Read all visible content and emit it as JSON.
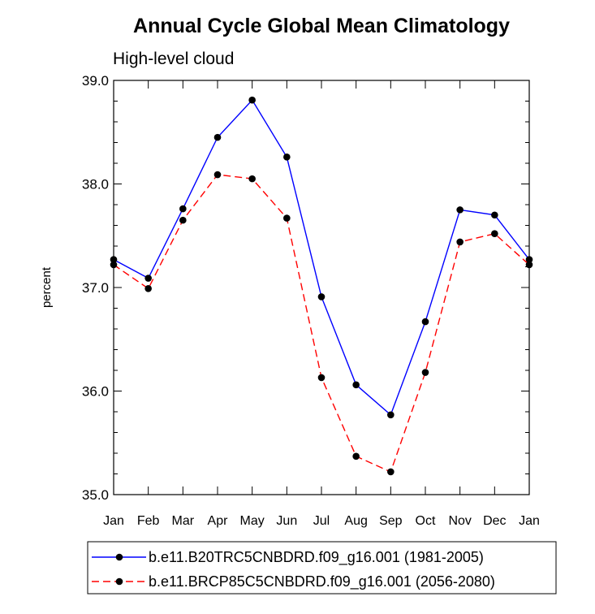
{
  "chart_data": {
    "type": "line",
    "title": "Annual Cycle Global Mean Climatology",
    "subtitle": "High-level cloud",
    "xlabel": "",
    "ylabel": "percent",
    "categories": [
      "Jan",
      "Feb",
      "Mar",
      "Apr",
      "May",
      "Jun",
      "Jul",
      "Aug",
      "Sep",
      "Oct",
      "Nov",
      "Dec",
      "Jan"
    ],
    "ylim": [
      35.0,
      39.0
    ],
    "yticks": [
      "35.0",
      "36.0",
      "37.0",
      "38.0",
      "39.0"
    ],
    "grid": false,
    "legend_position": "bottom",
    "series": [
      {
        "name": "b.e11.B20TRC5CNBDRD.f09_g16.001 (1981-2005)",
        "color": "#0000ff",
        "line_style": "solid",
        "values": [
          37.27,
          37.09,
          37.76,
          38.45,
          38.81,
          38.26,
          36.91,
          36.06,
          35.77,
          36.67,
          37.75,
          37.7,
          37.27
        ]
      },
      {
        "name": "b.e11.BRCP85C5CNBDRD.f09_g16.001 (2056-2080)",
        "color": "#ff0000",
        "line_style": "dashed",
        "values": [
          37.22,
          36.99,
          37.65,
          38.09,
          38.05,
          37.67,
          36.13,
          35.37,
          35.22,
          36.18,
          37.44,
          37.52,
          37.22
        ]
      }
    ]
  }
}
